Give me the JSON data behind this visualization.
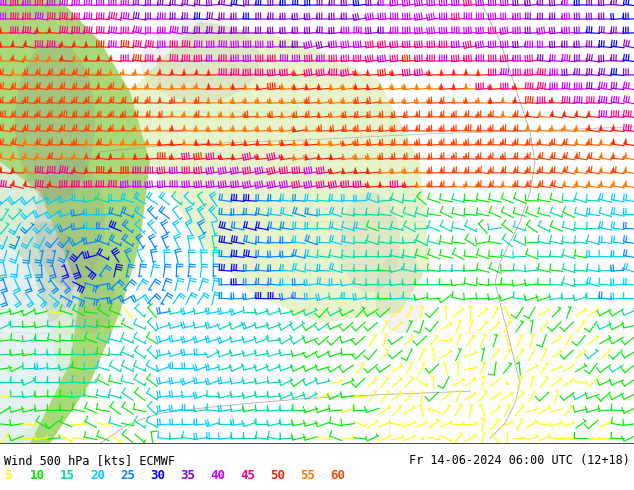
{
  "title_left": "Wind 500 hPa [kts] ECMWF",
  "title_right": "Fr 14-06-2024 06:00 UTC (12+18)",
  "legend_values": [
    5,
    10,
    15,
    20,
    25,
    30,
    35,
    40,
    45,
    50,
    55,
    60
  ],
  "legend_colors": [
    "#ffff00",
    "#00ee00",
    "#00ddaa",
    "#00ccff",
    "#0088ff",
    "#0000ff",
    "#8800cc",
    "#cc00ff",
    "#ff0088",
    "#ff2200",
    "#ff7700",
    "#ff4400"
  ],
  "bg_color": "#c8e8a0",
  "fig_bg": "#ffffff",
  "bottom_bg": "#ffffff",
  "title_fontsize": 8.5,
  "legend_fontsize": 9
}
